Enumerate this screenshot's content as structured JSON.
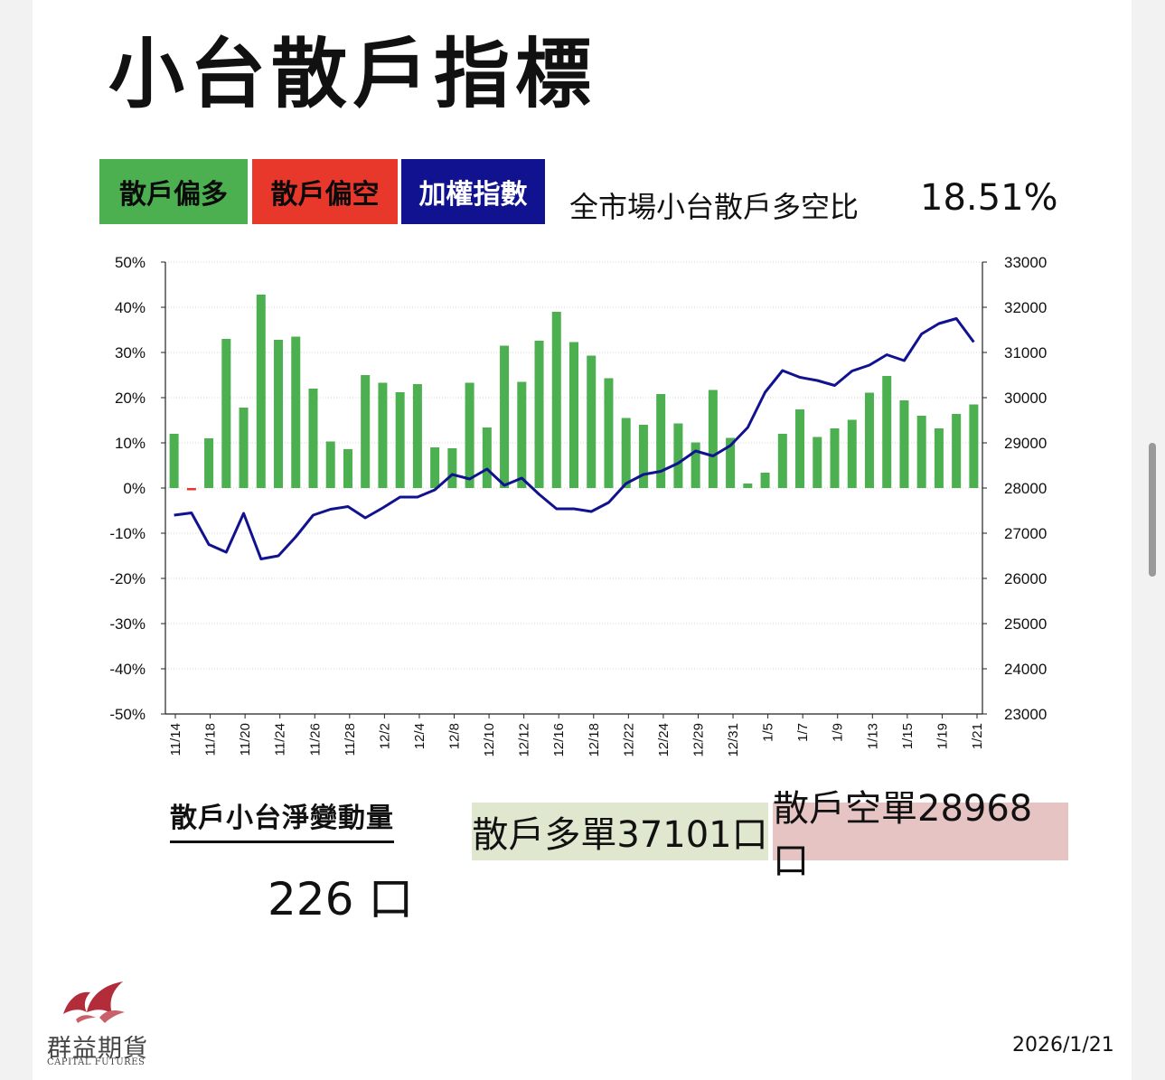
{
  "title": "小台散戶指標",
  "legend": {
    "long": "散戶偏多",
    "short": "散戶偏空",
    "index": "加權指數"
  },
  "ratio": {
    "label": "全市場小台散戶多空比",
    "value": "18.51%"
  },
  "net_change": {
    "label": "散戶小台淨變動量",
    "value": "226 口"
  },
  "orders": {
    "long": "散戶多單37101口",
    "short": "散戶空單28968口"
  },
  "brand": {
    "name_cn": "群益期貨",
    "name_en": "CAPITAL FUTURES"
  },
  "date": "2026/1/21",
  "colors": {
    "bar_positive": "#4caf50",
    "bar_negative": "#e8372b",
    "index_line": "#11128f",
    "brand": "#b22c3a"
  },
  "chart_data": {
    "type": "bar",
    "title": "",
    "xlabel": "",
    "ylabel": "",
    "ylim": [
      -50,
      50
    ],
    "y_ticks": [
      "50%",
      "40%",
      "30%",
      "20%",
      "10%",
      "0%",
      "-10%",
      "-20%",
      "-30%",
      "-40%",
      "-50%"
    ],
    "y2lim": [
      23000,
      33000
    ],
    "y2_ticks": [
      "33000",
      "32000",
      "31000",
      "30000",
      "29000",
      "28000",
      "27000",
      "26000",
      "25000",
      "24000",
      "23000"
    ],
    "x_tick_labels": [
      "11/14",
      "11/18",
      "11/20",
      "11/24",
      "11/26",
      "11/28",
      "12/2",
      "12/4",
      "12/8",
      "12/10",
      "12/12",
      "12/16",
      "12/18",
      "12/22",
      "12/24",
      "12/29",
      "12/31",
      "1/5",
      "1/7",
      "1/9",
      "1/13",
      "1/15",
      "1/19",
      "1/21"
    ],
    "series": [
      {
        "name": "散戶多空比",
        "axis": "left",
        "type": "bar",
        "values": [
          12.0,
          -0.5,
          11.0,
          33.0,
          17.8,
          42.8,
          32.8,
          33.5,
          22.0,
          10.3,
          8.6,
          25.0,
          23.3,
          21.2,
          23.0,
          9.0,
          8.8,
          23.3,
          13.4,
          31.5,
          23.5,
          32.6,
          39.0,
          32.3,
          29.3,
          24.3,
          15.5,
          14.0,
          20.8,
          14.3,
          10.1,
          21.7,
          11.1,
          1.0,
          3.4,
          12.0,
          17.4,
          11.3,
          13.2,
          15.1,
          21.1,
          24.8,
          19.4,
          16.0,
          13.2,
          16.4,
          18.5
        ]
      },
      {
        "name": "加權指數",
        "axis": "right",
        "type": "line",
        "values": [
          27400,
          27450,
          26750,
          26580,
          27440,
          26430,
          26500,
          26920,
          27400,
          27530,
          27590,
          27340,
          27560,
          27800,
          27800,
          27960,
          28300,
          28200,
          28420,
          28060,
          28220,
          27860,
          27540,
          27540,
          27480,
          27680,
          28100,
          28300,
          28370,
          28550,
          28820,
          28710,
          28940,
          29340,
          30120,
          30600,
          30450,
          30380,
          30270,
          30590,
          30720,
          30950,
          30820,
          31410,
          31640,
          31750,
          31230
        ]
      }
    ]
  }
}
